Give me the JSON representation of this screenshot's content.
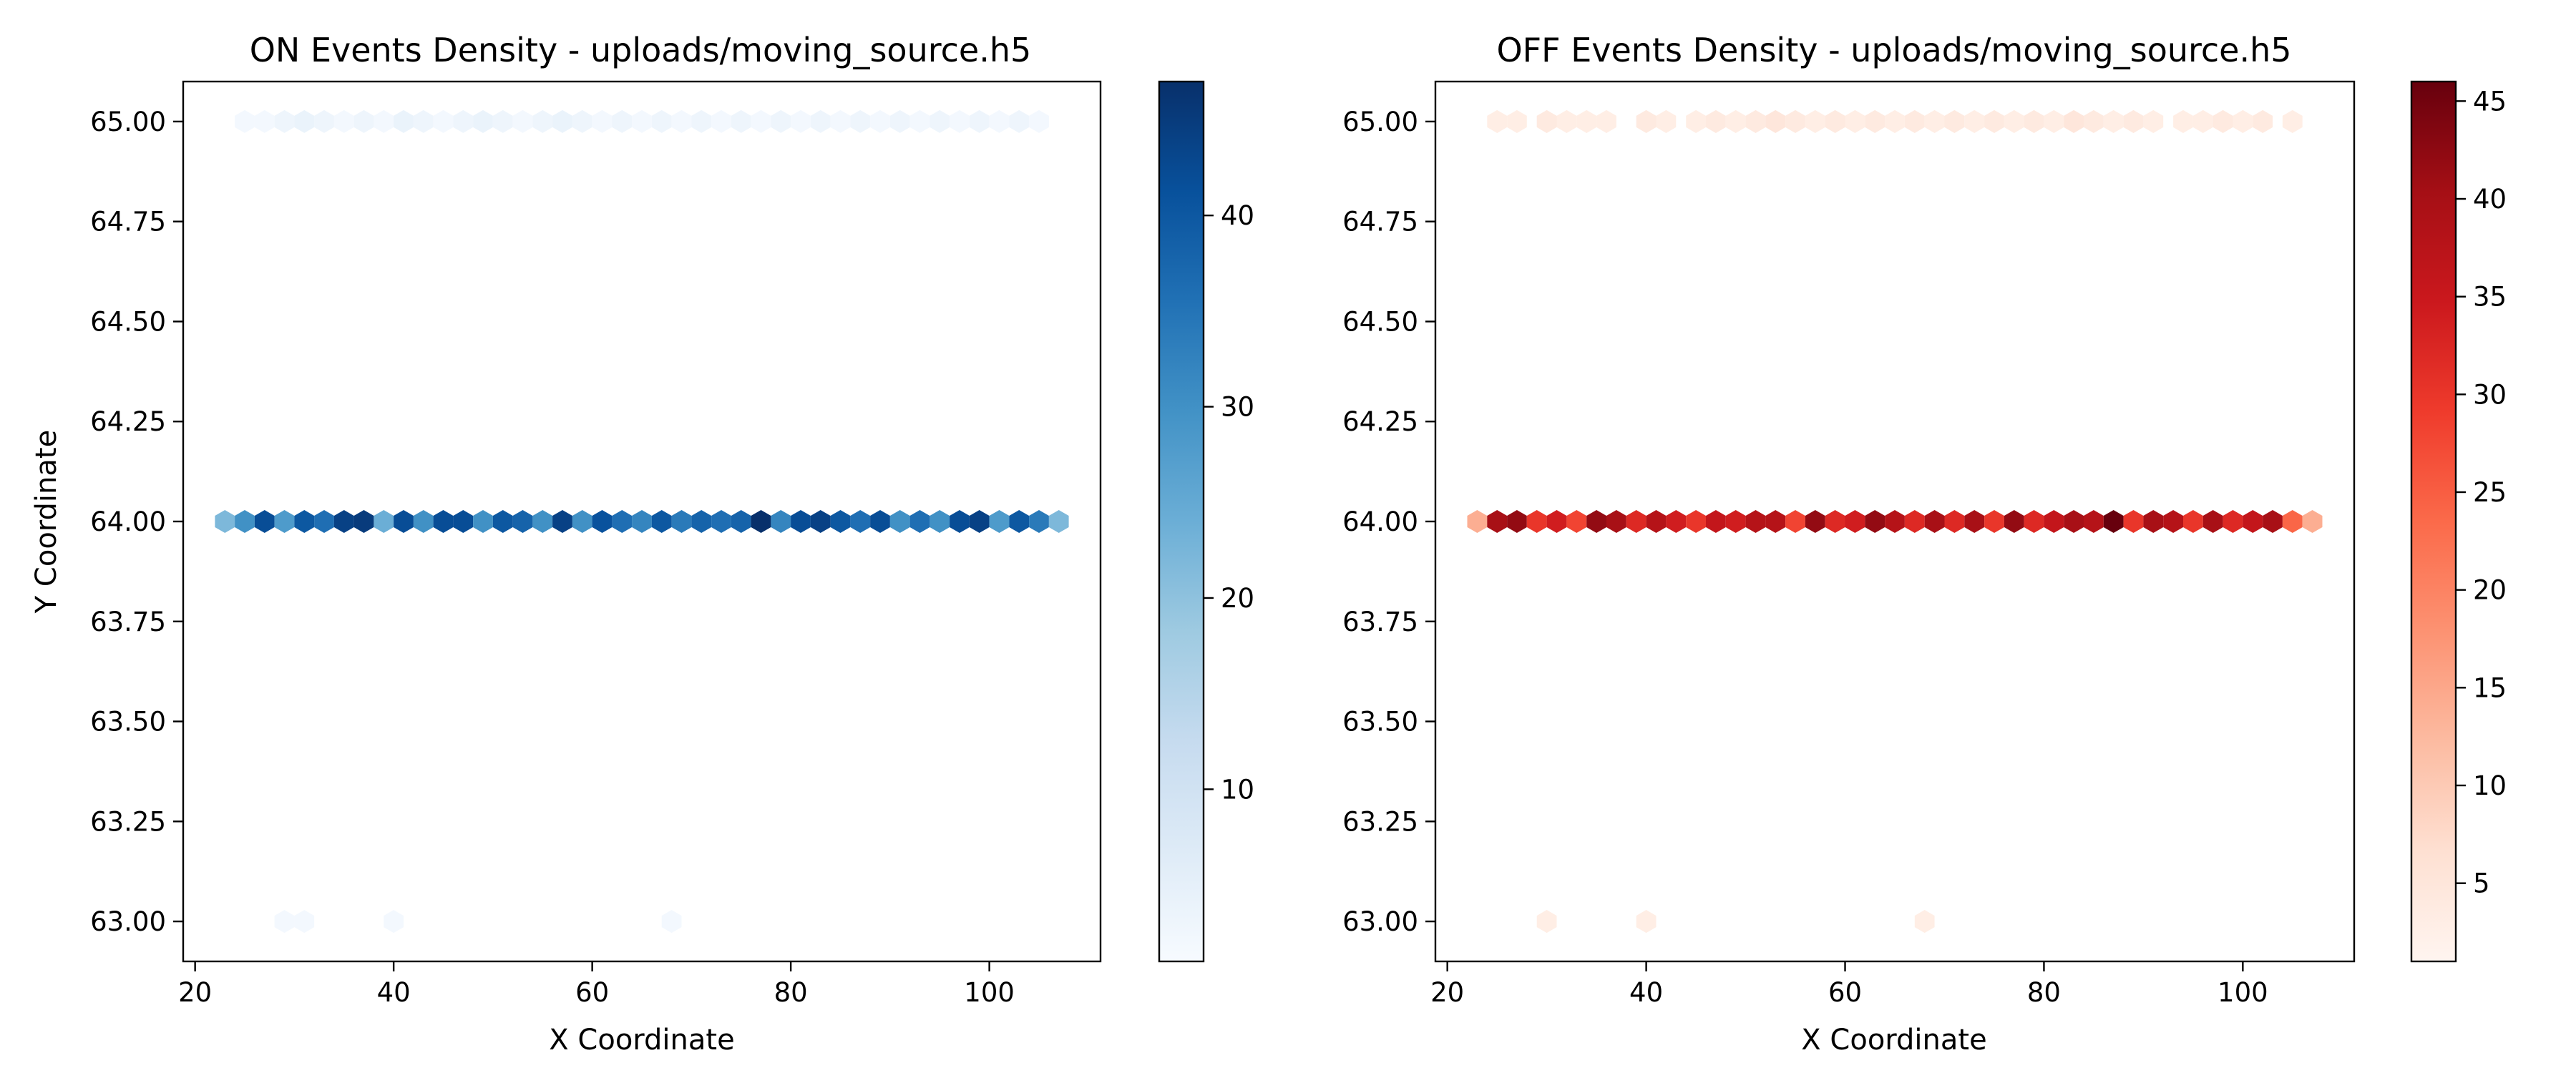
{
  "chart_data": [
    {
      "type": "hexbin",
      "title": "ON Events Density - uploads/moving_source.h5",
      "xlabel": "X Coordinate",
      "ylabel": "Y Coordinate",
      "xlim": [
        18.8,
        111.2
      ],
      "ylim": [
        62.9,
        65.1
      ],
      "xticks": [
        20,
        40,
        60,
        80,
        100
      ],
      "xtick_labels": [
        "20",
        "40",
        "60",
        "80",
        "100"
      ],
      "yticks": [
        63.0,
        63.25,
        63.5,
        63.75,
        64.0,
        64.25,
        64.5,
        64.75,
        65.0
      ],
      "ytick_labels": [
        "63.00",
        "63.25",
        "63.50",
        "63.75",
        "64.00",
        "64.25",
        "64.50",
        "64.75",
        "65.00"
      ],
      "colormap": "Blues",
      "colorbar": {
        "range": [
          1,
          47
        ],
        "ticks": [
          10,
          20,
          30,
          40
        ],
        "tick_labels": [
          "10",
          "20",
          "30",
          "40"
        ]
      },
      "rows": [
        {
          "y": 65.0,
          "x": [
            25,
            27,
            29,
            31,
            33,
            35,
            37,
            39,
            41,
            43,
            45,
            47,
            49,
            51,
            53,
            55,
            57,
            59,
            61,
            63,
            65,
            67,
            69,
            71,
            73,
            75,
            77,
            79,
            81,
            83,
            85,
            87,
            89,
            91,
            93,
            95,
            97,
            99,
            101,
            103,
            105
          ],
          "counts": [
            2,
            2,
            3,
            4,
            3,
            2,
            3,
            2,
            4,
            3,
            2,
            3,
            4,
            3,
            2,
            3,
            4,
            3,
            2,
            3,
            2,
            3,
            2,
            3,
            2,
            3,
            2,
            3,
            2,
            3,
            2,
            3,
            2,
            3,
            2,
            3,
            2,
            3,
            2,
            3,
            2
          ]
        },
        {
          "y": 64.0,
          "x": [
            23,
            25,
            27,
            29,
            31,
            33,
            35,
            37,
            39,
            41,
            43,
            45,
            47,
            49,
            51,
            53,
            55,
            57,
            59,
            61,
            63,
            65,
            67,
            69,
            71,
            73,
            75,
            77,
            79,
            81,
            83,
            85,
            87,
            89,
            91,
            93,
            95,
            97,
            99,
            101,
            103,
            105,
            107
          ],
          "counts": [
            22,
            30,
            42,
            28,
            40,
            36,
            44,
            45,
            24,
            42,
            30,
            42,
            42,
            30,
            40,
            38,
            30,
            44,
            30,
            41,
            36,
            32,
            40,
            34,
            38,
            36,
            38,
            47,
            32,
            42,
            44,
            40,
            36,
            42,
            30,
            36,
            30,
            42,
            44,
            28,
            40,
            34,
            22
          ]
        },
        {
          "y": 63.0,
          "x": [
            29,
            31,
            40,
            68
          ],
          "counts": [
            2,
            2,
            2,
            2
          ]
        }
      ]
    },
    {
      "type": "hexbin",
      "title": "OFF Events Density - uploads/moving_source.h5",
      "xlabel": "X Coordinate",
      "ylabel": "",
      "xlim": [
        18.8,
        111.2
      ],
      "ylim": [
        62.9,
        65.1
      ],
      "xticks": [
        20,
        40,
        60,
        80,
        100
      ],
      "xtick_labels": [
        "20",
        "40",
        "60",
        "80",
        "100"
      ],
      "yticks": [
        63.0,
        63.25,
        63.5,
        63.75,
        64.0,
        64.25,
        64.5,
        64.75,
        65.0
      ],
      "ytick_labels": [
        "63.00",
        "63.25",
        "63.50",
        "63.75",
        "64.00",
        "64.25",
        "64.50",
        "64.75",
        "65.00"
      ],
      "colormap": "Reds",
      "colorbar": {
        "range": [
          1,
          46
        ],
        "ticks": [
          5,
          10,
          15,
          20,
          25,
          30,
          35,
          40,
          45
        ],
        "tick_labels": [
          "5",
          "10",
          "15",
          "20",
          "25",
          "30",
          "35",
          "40",
          "45"
        ]
      },
      "rows": [
        {
          "y": 65.0,
          "x": [
            25,
            27,
            30,
            32,
            34,
            36,
            40,
            42,
            45,
            47,
            49,
            51,
            53,
            55,
            57,
            59,
            61,
            63,
            65,
            67,
            69,
            71,
            73,
            75,
            77,
            79,
            81,
            83,
            85,
            87,
            89,
            91,
            94,
            96,
            98,
            100,
            102,
            105
          ],
          "counts": [
            3,
            3,
            4,
            3,
            3,
            3,
            4,
            3,
            3,
            4,
            3,
            4,
            5,
            4,
            3,
            4,
            3,
            4,
            3,
            4,
            3,
            4,
            3,
            4,
            3,
            4,
            3,
            5,
            4,
            3,
            4,
            3,
            3,
            3,
            4,
            3,
            4,
            3
          ]
        },
        {
          "y": 64.0,
          "x": [
            23,
            25,
            27,
            29,
            31,
            33,
            35,
            37,
            39,
            41,
            43,
            45,
            47,
            49,
            51,
            53,
            55,
            57,
            59,
            61,
            63,
            65,
            67,
            69,
            71,
            73,
            75,
            77,
            79,
            81,
            83,
            85,
            87,
            89,
            91,
            93,
            95,
            97,
            99,
            101,
            103,
            105,
            107
          ],
          "counts": [
            14,
            40,
            42,
            30,
            34,
            28,
            42,
            40,
            32,
            38,
            34,
            30,
            36,
            34,
            38,
            38,
            28,
            42,
            32,
            34,
            42,
            38,
            32,
            40,
            32,
            40,
            30,
            42,
            32,
            36,
            40,
            38,
            46,
            30,
            40,
            38,
            30,
            40,
            32,
            36,
            40,
            24,
            14
          ]
        },
        {
          "y": 63.0,
          "x": [
            30,
            40,
            68
          ],
          "counts": [
            3,
            3,
            3
          ]
        }
      ]
    }
  ]
}
